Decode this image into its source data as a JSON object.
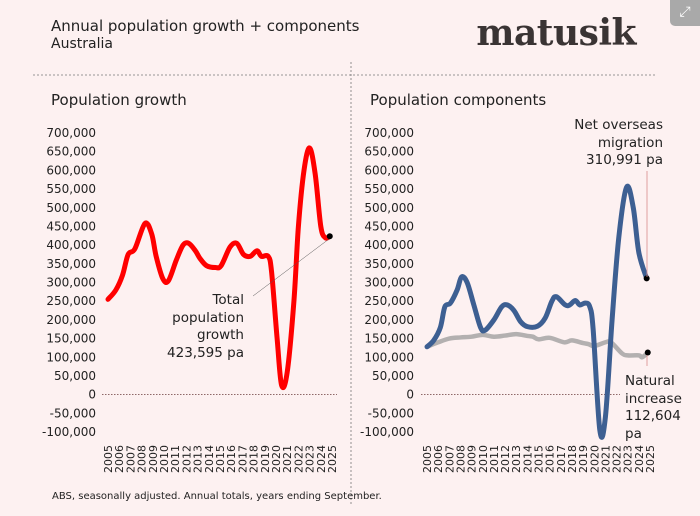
{
  "header": {
    "title": "Annual population growth + components",
    "subtitle": "Australia",
    "logo": "matusik"
  },
  "footer": "ABS, seasonally adjusted.  Annual totals, years ending September.",
  "controls": {
    "expand_icon": "expand-arrows-icon"
  },
  "colors": {
    "background": "#fdf1f1",
    "total": "#ff0000",
    "nom": "#3d5f92",
    "natural": "#b3b0b0",
    "marker": "#000000"
  },
  "chart_data": [
    {
      "type": "line",
      "title": "Population growth",
      "ylim": [
        -100000,
        700000
      ],
      "yticks": [
        "700,000",
        "650,000",
        "600,000",
        "550,000",
        "500,000",
        "450,000",
        "400,000",
        "350,000",
        "300,000",
        "250,000",
        "200,000",
        "150,000",
        "100,000",
        "50,000",
        "0",
        "-50,000",
        "-100,000"
      ],
      "xticks": [
        "2005",
        "2006",
        "2007",
        "2008",
        "2009",
        "2010",
        "2011",
        "2012",
        "2013",
        "2014",
        "2015",
        "2016",
        "2017",
        "2018",
        "2019",
        "2020",
        "2021",
        "2022",
        "2023",
        "2024",
        "2025"
      ],
      "series": [
        {
          "name": "Total population growth",
          "color": "#ff0000",
          "x": [
            2005,
            2005.7,
            2006.3,
            2006.8,
            2007.4,
            2008.3,
            2008.9,
            2009.3,
            2009.9,
            2010.4,
            2011.1,
            2011.7,
            2012.2,
            2012.8,
            2013.2,
            2013.8,
            2014.6,
            2015.1,
            2015.9,
            2016.5,
            2017.1,
            2017.7,
            2018.3,
            2018.7,
            2019.3,
            2019.6,
            2020.1,
            2020.5,
            2021,
            2021.6,
            2022,
            2022.5,
            2023,
            2023.5,
            2024,
            2024.4,
            2024.8
          ],
          "y": [
            255000,
            280000,
            320000,
            375000,
            390000,
            458000,
            430000,
            370000,
            310000,
            305000,
            360000,
            400000,
            405000,
            385000,
            365000,
            345000,
            340000,
            345000,
            395000,
            405000,
            375000,
            370000,
            385000,
            370000,
            370000,
            330000,
            150000,
            25000,
            60000,
            250000,
            450000,
            600000,
            660000,
            590000,
            450000,
            420000,
            423595
          ]
        }
      ],
      "annotation": {
        "lines": [
          "Total",
          "population",
          "growth",
          "423,595 pa"
        ]
      }
    },
    {
      "type": "line",
      "title": "Population components",
      "ylim": [
        -100000,
        700000
      ],
      "yticks": [
        "700,000",
        "650,000",
        "600,000",
        "550,000",
        "500,000",
        "450,000",
        "400,000",
        "350,000",
        "300,000",
        "250,000",
        "200,000",
        "150,000",
        "100,000",
        "50,000",
        "0",
        "-50,000",
        "-100,000"
      ],
      "xticks": [
        "2005",
        "2006",
        "2007",
        "2008",
        "2009",
        "2010",
        "2011",
        "2012",
        "2013",
        "2014",
        "2015",
        "2016",
        "2017",
        "2018",
        "2019",
        "2020",
        "2021",
        "2022",
        "2023",
        "2024",
        "2025"
      ],
      "series": [
        {
          "name": "Natural increase",
          "color": "#b3b0b0",
          "x": [
            2005,
            2006,
            2007,
            2008,
            2009,
            2010,
            2011,
            2012,
            2013,
            2014,
            2014.5,
            2015,
            2016,
            2017.3,
            2018,
            2019,
            2019.5,
            2020,
            2021,
            2021.5,
            2022.5,
            2023,
            2024,
            2024.3,
            2024.8
          ],
          "y": [
            128000,
            140000,
            150000,
            153000,
            155000,
            160000,
            155000,
            158000,
            162000,
            157000,
            155000,
            148000,
            152000,
            140000,
            145000,
            138000,
            135000,
            130000,
            140000,
            140000,
            110000,
            105000,
            105000,
            100000,
            112604
          ]
        },
        {
          "name": "Net overseas migration",
          "color": "#3d5f92",
          "x": [
            2005,
            2005.6,
            2006.2,
            2006.6,
            2007.1,
            2007.7,
            2008.1,
            2008.6,
            2009.2,
            2009.8,
            2010.2,
            2011,
            2011.7,
            2012.2,
            2012.8,
            2013.4,
            2014,
            2014.9,
            2015.6,
            2016.2,
            2016.6,
            2017.4,
            2017.8,
            2018.3,
            2018.7,
            2019.2,
            2019.6,
            2019.9,
            2020.5,
            2021,
            2021.6,
            2022.2,
            2022.9,
            2023.5,
            2024,
            2024.7
          ],
          "y": [
            128000,
            145000,
            180000,
            235000,
            245000,
            280000,
            315000,
            300000,
            240000,
            180000,
            172000,
            200000,
            235000,
            240000,
            225000,
            195000,
            182000,
            183000,
            205000,
            250000,
            262000,
            240000,
            240000,
            252000,
            240000,
            245000,
            235000,
            175000,
            -95000,
            -60000,
            200000,
            420000,
            555000,
            500000,
            380000,
            310991
          ]
        }
      ],
      "annotations": {
        "nom": [
          "Net overseas",
          "migration",
          "310,991 pa"
        ],
        "natural": [
          "Natural",
          "increase",
          "112,604 pa"
        ]
      }
    }
  ]
}
